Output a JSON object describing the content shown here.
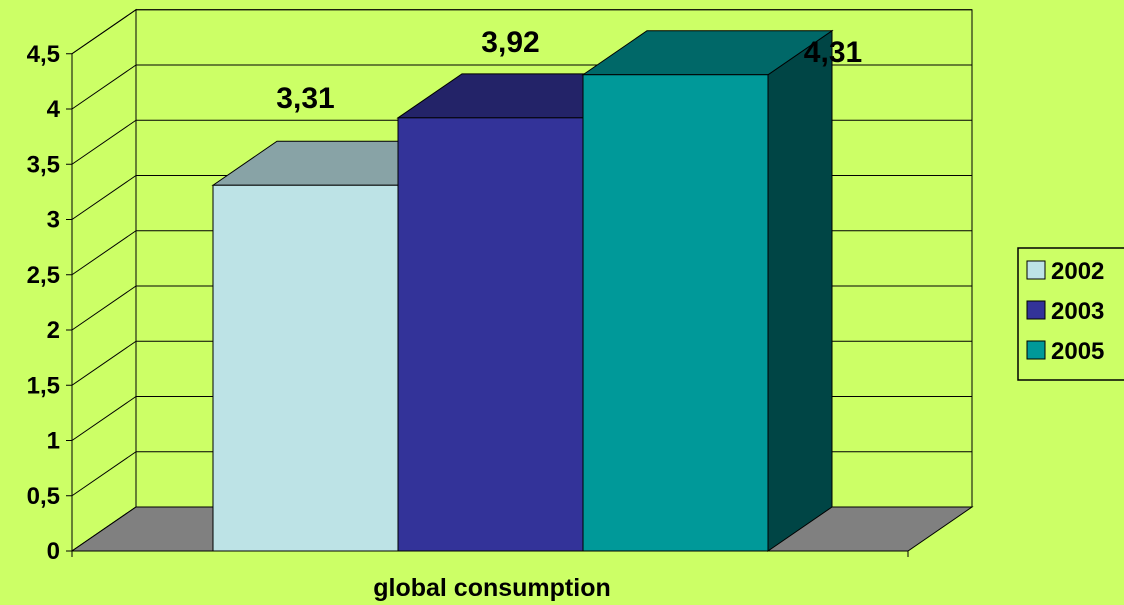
{
  "chart_data": {
    "type": "bar",
    "categories": [
      "global consumption"
    ],
    "xlabel": "global consumption",
    "ylim": [
      0,
      4.5
    ],
    "yticks": [
      "0",
      "0,5",
      "1",
      "1,5",
      "2",
      "2,5",
      "3",
      "3,5",
      "4",
      "4,5"
    ],
    "grid": true,
    "legend_position": "right",
    "series": [
      {
        "name": "2002",
        "values": [
          3.31
        ],
        "label": "3,31",
        "color": "#bde3e6"
      },
      {
        "name": "2003",
        "values": [
          3.92
        ],
        "label": "3,92",
        "color": "#333399"
      },
      {
        "name": "2005",
        "values": [
          4.31
        ],
        "label": "4,31",
        "color": "#009999"
      }
    ]
  }
}
